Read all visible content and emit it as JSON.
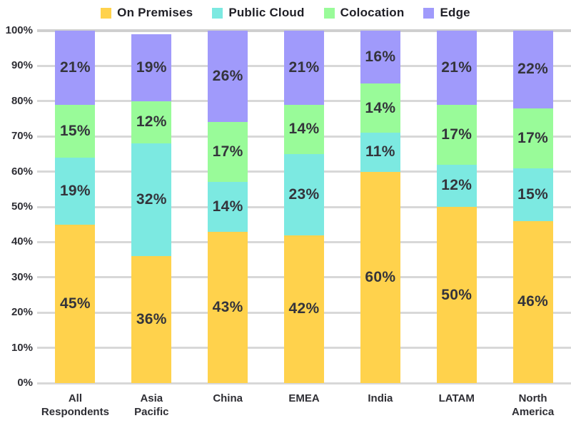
{
  "chart_data": {
    "type": "bar",
    "variant": "stacked-percent",
    "title": "",
    "categories": [
      "All\nRespondents",
      "Asia\nPacific",
      "China",
      "EMEA",
      "India",
      "LATAM",
      "North\nAmerica"
    ],
    "series": [
      {
        "name": "On Premises",
        "color": "#FFD24C",
        "values": [
          45,
          36,
          43,
          42,
          60,
          50,
          46
        ],
        "labels": [
          "45%",
          "36%",
          "43%",
          "42%",
          "60%",
          "50%",
          "46%"
        ]
      },
      {
        "name": "Public Cloud",
        "color": "#7CE9E1",
        "values": [
          19,
          32,
          14,
          23,
          11,
          12,
          15
        ],
        "labels": [
          "19%",
          "32%",
          "14%",
          "23%",
          "11%",
          "12%",
          "15%"
        ]
      },
      {
        "name": "Colocation",
        "color": "#99FB99",
        "values": [
          15,
          12,
          17,
          14,
          14,
          17,
          17
        ],
        "labels": [
          "15%",
          "12%",
          "17%",
          "14%",
          "14%",
          "17%",
          "17%"
        ]
      },
      {
        "name": "Edge",
        "color": "#A09AFB",
        "values": [
          21,
          19,
          26,
          21,
          16,
          21,
          22
        ],
        "labels": [
          "21%",
          "19%",
          "26%",
          "21%",
          "16%",
          "21%",
          "22%"
        ]
      }
    ],
    "stack_order_bottom_to_top": [
      "On Premises",
      "Public Cloud",
      "Colocation",
      "Edge"
    ],
    "value_suffix": "%",
    "y_axis": {
      "min": 0,
      "max": 100,
      "tick_step": 10,
      "tick_labels": [
        "0%",
        "10%",
        "20%",
        "30%",
        "40%",
        "50%",
        "60%",
        "70%",
        "80%",
        "90%",
        "100%"
      ]
    },
    "legend": {
      "position": "top",
      "items": [
        "On Premises",
        "Public Cloud",
        "Colocation",
        "Edge"
      ]
    },
    "grid": true
  },
  "colors": {
    "background": "#FFFFFF",
    "gridline": "#D8D8D8",
    "segment_label_text": "#34343B",
    "axis_text": "#2E2E34"
  }
}
